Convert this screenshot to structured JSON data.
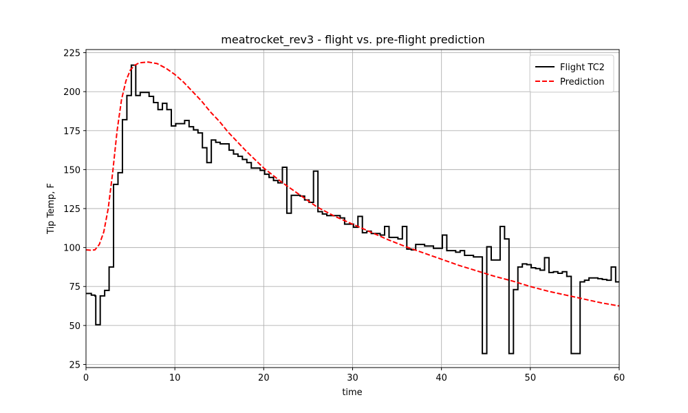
{
  "chart_data": {
    "type": "line",
    "title": "meatrocket_rev3 - flight vs. pre-flight prediction",
    "xlabel": "time",
    "ylabel": "Tip Temp, F",
    "xlim": [
      0,
      60
    ],
    "ylim": [
      23,
      227
    ],
    "xticks": [
      0,
      10,
      20,
      30,
      40,
      50,
      60
    ],
    "yticks": [
      25,
      50,
      75,
      100,
      125,
      150,
      175,
      200,
      225
    ],
    "grid": true,
    "legend_position": "top-right",
    "series": [
      {
        "name": "Flight TC2",
        "color": "#000000",
        "style": "solid",
        "step": true,
        "points": [
          [
            0,
            70.5
          ],
          [
            0.6,
            70.5
          ],
          [
            0.6,
            69.5
          ],
          [
            1.0,
            69.5
          ],
          [
            1.0,
            69
          ],
          [
            1.1,
            69
          ],
          [
            1.1,
            50.5
          ],
          [
            1.6,
            50.5
          ],
          [
            1.6,
            69
          ],
          [
            2.1,
            69
          ],
          [
            2.1,
            72.5
          ],
          [
            2.6,
            72.5
          ],
          [
            2.6,
            87.5
          ],
          [
            3.1,
            87.5
          ],
          [
            3.1,
            140.5
          ],
          [
            3.6,
            140.5
          ],
          [
            3.6,
            148
          ],
          [
            4.1,
            148
          ],
          [
            4.1,
            182
          ],
          [
            4.6,
            182
          ],
          [
            4.6,
            197.5
          ],
          [
            5.1,
            197.5
          ],
          [
            5.1,
            217
          ],
          [
            5.6,
            217
          ],
          [
            5.6,
            197.5
          ],
          [
            6.1,
            197.5
          ],
          [
            6.1,
            199.5
          ],
          [
            7.1,
            199.5
          ],
          [
            7.1,
            197
          ],
          [
            7.6,
            197
          ],
          [
            7.6,
            193
          ],
          [
            8.1,
            193
          ],
          [
            8.1,
            188.5
          ],
          [
            8.6,
            188.5
          ],
          [
            8.6,
            192.5
          ],
          [
            9.1,
            192.5
          ],
          [
            9.1,
            188.5
          ],
          [
            9.6,
            188.5
          ],
          [
            9.6,
            178
          ],
          [
            10.1,
            178
          ],
          [
            10.1,
            179.5
          ],
          [
            11.1,
            179.5
          ],
          [
            11.1,
            181.5
          ],
          [
            11.6,
            181.5
          ],
          [
            11.6,
            177.5
          ],
          [
            12.1,
            177.5
          ],
          [
            12.1,
            175.5
          ],
          [
            12.6,
            175.5
          ],
          [
            12.6,
            173.5
          ],
          [
            13.1,
            173.5
          ],
          [
            13.1,
            164
          ],
          [
            13.6,
            164
          ],
          [
            13.6,
            154.5
          ],
          [
            14.1,
            154.5
          ],
          [
            14.1,
            169
          ],
          [
            14.6,
            169
          ],
          [
            14.6,
            167.5
          ],
          [
            15.1,
            167.5
          ],
          [
            15.1,
            166.5
          ],
          [
            16.1,
            166.5
          ],
          [
            16.1,
            162.5
          ],
          [
            16.6,
            162.5
          ],
          [
            16.6,
            160
          ],
          [
            17.1,
            160
          ],
          [
            17.1,
            158.5
          ],
          [
            17.6,
            158.5
          ],
          [
            17.6,
            156.5
          ],
          [
            18.1,
            156.5
          ],
          [
            18.1,
            154.5
          ],
          [
            18.6,
            154.5
          ],
          [
            18.6,
            151
          ],
          [
            19.6,
            151
          ],
          [
            19.6,
            149.5
          ],
          [
            20.1,
            149.5
          ],
          [
            20.1,
            147
          ],
          [
            20.6,
            147
          ],
          [
            20.6,
            145
          ],
          [
            21.1,
            145
          ],
          [
            21.1,
            143
          ],
          [
            21.6,
            143
          ],
          [
            21.6,
            141.5
          ],
          [
            22.1,
            141.5
          ],
          [
            22.1,
            151.5
          ],
          [
            22.6,
            151.5
          ],
          [
            22.6,
            122
          ],
          [
            23.1,
            122
          ],
          [
            23.1,
            133.5
          ],
          [
            24.1,
            133.5
          ],
          [
            24.1,
            133
          ],
          [
            24.6,
            133
          ],
          [
            24.6,
            130.5
          ],
          [
            25.1,
            130.5
          ],
          [
            25.1,
            129
          ],
          [
            25.6,
            129
          ],
          [
            25.6,
            149
          ],
          [
            26.1,
            149
          ],
          [
            26.1,
            123
          ],
          [
            26.6,
            123
          ],
          [
            26.6,
            121.5
          ],
          [
            27.1,
            121.5
          ],
          [
            27.1,
            120.5
          ],
          [
            28.6,
            120.5
          ],
          [
            28.6,
            119
          ],
          [
            29.1,
            119
          ],
          [
            29.1,
            115
          ],
          [
            30.1,
            115
          ],
          [
            30.1,
            113
          ],
          [
            30.6,
            113
          ],
          [
            30.6,
            120
          ],
          [
            31.1,
            120
          ],
          [
            31.1,
            109.5
          ],
          [
            31.6,
            109.5
          ],
          [
            31.6,
            110.5
          ],
          [
            32.1,
            110.5
          ],
          [
            32.1,
            109
          ],
          [
            33.1,
            109
          ],
          [
            33.1,
            108
          ],
          [
            33.6,
            108
          ],
          [
            33.6,
            113.5
          ],
          [
            34.1,
            113.5
          ],
          [
            34.1,
            106.5
          ],
          [
            35.1,
            106.5
          ],
          [
            35.1,
            105.5
          ],
          [
            35.6,
            105.5
          ],
          [
            35.6,
            113.5
          ],
          [
            36.1,
            113.5
          ],
          [
            36.1,
            99
          ],
          [
            36.6,
            99
          ],
          [
            36.6,
            98.5
          ],
          [
            37.1,
            98.5
          ],
          [
            37.1,
            102
          ],
          [
            38.1,
            102
          ],
          [
            38.1,
            101
          ],
          [
            39.1,
            101
          ],
          [
            39.1,
            99.5
          ],
          [
            40.1,
            99.5
          ],
          [
            40.1,
            108
          ],
          [
            40.6,
            108
          ],
          [
            40.6,
            98
          ],
          [
            41.6,
            98
          ],
          [
            41.6,
            97
          ],
          [
            42.1,
            97
          ],
          [
            42.1,
            98
          ],
          [
            42.6,
            98
          ],
          [
            42.6,
            95
          ],
          [
            43.6,
            95
          ],
          [
            43.6,
            94
          ],
          [
            44.6,
            94
          ],
          [
            44.6,
            32
          ],
          [
            45.1,
            32
          ],
          [
            45.1,
            100.5
          ],
          [
            45.6,
            100.5
          ],
          [
            45.6,
            92
          ],
          [
            46.6,
            92
          ],
          [
            46.6,
            113.5
          ],
          [
            47.1,
            113.5
          ],
          [
            47.1,
            105.5
          ],
          [
            47.6,
            105.5
          ],
          [
            47.6,
            32
          ],
          [
            48.1,
            32
          ],
          [
            48.1,
            73
          ],
          [
            48.6,
            73
          ],
          [
            48.6,
            87.5
          ],
          [
            49.1,
            87.5
          ],
          [
            49.1,
            89.5
          ],
          [
            49.6,
            89.5
          ],
          [
            49.6,
            89
          ],
          [
            50.1,
            89
          ],
          [
            50.1,
            87
          ],
          [
            50.6,
            87
          ],
          [
            50.6,
            86.5
          ],
          [
            51.1,
            86.5
          ],
          [
            51.1,
            85.5
          ],
          [
            51.6,
            85.5
          ],
          [
            51.6,
            93.5
          ],
          [
            52.1,
            93.5
          ],
          [
            52.1,
            84
          ],
          [
            52.6,
            84
          ],
          [
            52.6,
            84.5
          ],
          [
            53.1,
            84.5
          ],
          [
            53.1,
            83.5
          ],
          [
            53.6,
            83.5
          ],
          [
            53.6,
            84.5
          ],
          [
            54.1,
            84.5
          ],
          [
            54.1,
            81.5
          ],
          [
            54.6,
            81.5
          ],
          [
            54.6,
            32
          ],
          [
            55.6,
            32
          ],
          [
            55.6,
            78
          ],
          [
            56.1,
            78
          ],
          [
            56.1,
            79
          ],
          [
            56.6,
            79
          ],
          [
            56.6,
            80.5
          ],
          [
            57.6,
            80.5
          ],
          [
            57.6,
            80
          ],
          [
            58.1,
            80
          ],
          [
            58.1,
            79.5
          ],
          [
            58.6,
            79.5
          ],
          [
            58.6,
            79
          ],
          [
            59.1,
            79
          ],
          [
            59.1,
            87.5
          ],
          [
            59.6,
            87.5
          ],
          [
            59.6,
            78
          ],
          [
            60,
            78
          ]
        ]
      },
      {
        "name": "Prediction",
        "color": "#ff0000",
        "style": "dashed",
        "points": [
          [
            0,
            98.5
          ],
          [
            0.5,
            98.3
          ],
          [
            1,
            98.5
          ],
          [
            1.5,
            102
          ],
          [
            2,
            110
          ],
          [
            2.5,
            125
          ],
          [
            3,
            148
          ],
          [
            3.5,
            175
          ],
          [
            4,
            195
          ],
          [
            4.5,
            207
          ],
          [
            5,
            214
          ],
          [
            5.5,
            217
          ],
          [
            6,
            218.5
          ],
          [
            7,
            219
          ],
          [
            8,
            218
          ],
          [
            9,
            215
          ],
          [
            10,
            211
          ],
          [
            11,
            206
          ],
          [
            12,
            200
          ],
          [
            13,
            194
          ],
          [
            14,
            187
          ],
          [
            15,
            181
          ],
          [
            16,
            174
          ],
          [
            17,
            168
          ],
          [
            18,
            162
          ],
          [
            20,
            151
          ],
          [
            22,
            142
          ],
          [
            24,
            134
          ],
          [
            26,
            126
          ],
          [
            28,
            120
          ],
          [
            30,
            115
          ],
          [
            32,
            110
          ],
          [
            34,
            105
          ],
          [
            36,
            100.5
          ],
          [
            38,
            96.5
          ],
          [
            40,
            92.5
          ],
          [
            42,
            88.5
          ],
          [
            44,
            85
          ],
          [
            46,
            81.5
          ],
          [
            48,
            78.5
          ],
          [
            50,
            75
          ],
          [
            52,
            72
          ],
          [
            54,
            69.5
          ],
          [
            56,
            67
          ],
          [
            58,
            64.5
          ],
          [
            60,
            62.5
          ]
        ]
      }
    ]
  }
}
